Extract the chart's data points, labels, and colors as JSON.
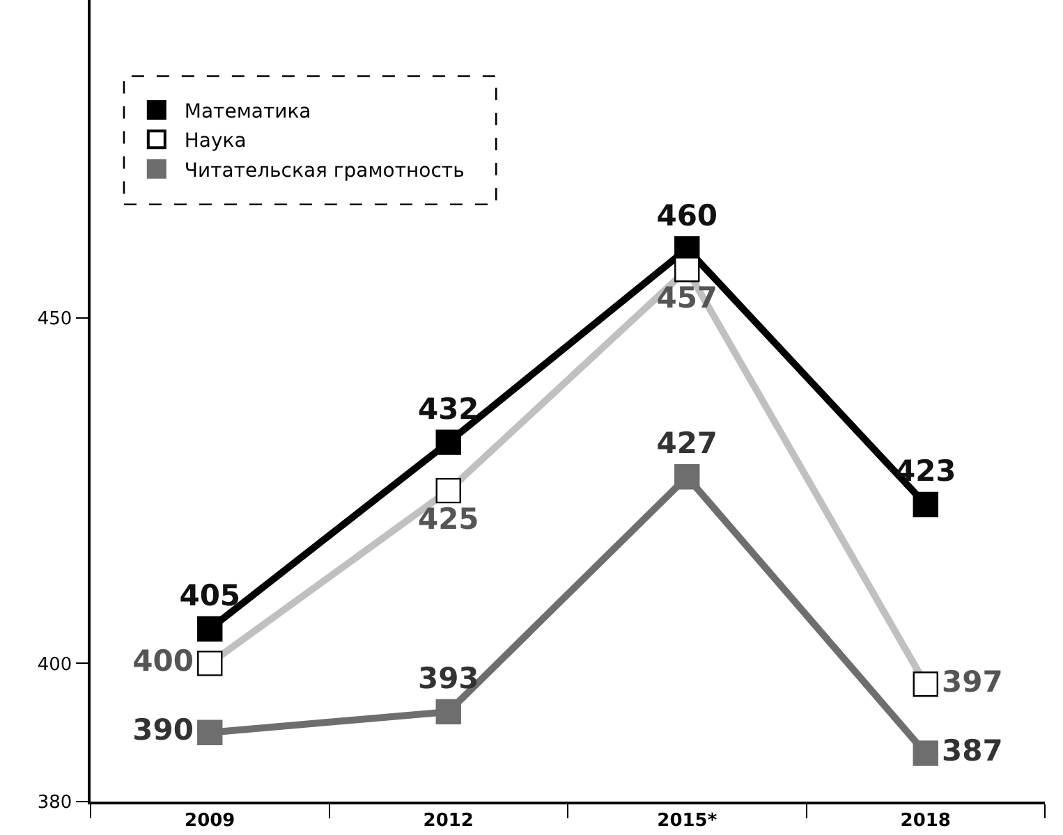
{
  "chart_data": {
    "type": "line",
    "categories": [
      "2009",
      "2012",
      "2015*",
      "2018"
    ],
    "series": [
      {
        "name": "Математика",
        "color": "#000000",
        "colors": [
          "#000000",
          "#000000",
          "#000000",
          "#000000"
        ],
        "values": [
          405,
          432,
          460,
          423
        ]
      },
      {
        "name": "Наука",
        "color": "#c0c0c0",
        "colors": [
          "#ffffff",
          "#ffffff",
          "#ffffff",
          "#ffffff"
        ],
        "values": [
          400,
          425,
          457,
          397
        ]
      },
      {
        "name": "Читательская грамотность",
        "color": "#6e6e6e",
        "colors": [
          "#6e6e6e",
          "#6e6e6e",
          "#6e6e6e",
          "#6e6e6e"
        ],
        "values": [
          390,
          393,
          427,
          387
        ]
      }
    ],
    "ylim": [
      380,
      496
    ],
    "yticks": [
      380,
      400,
      450
    ],
    "data_labels": true,
    "legend": "top left",
    "marker": "square",
    "line_style": "solid"
  }
}
